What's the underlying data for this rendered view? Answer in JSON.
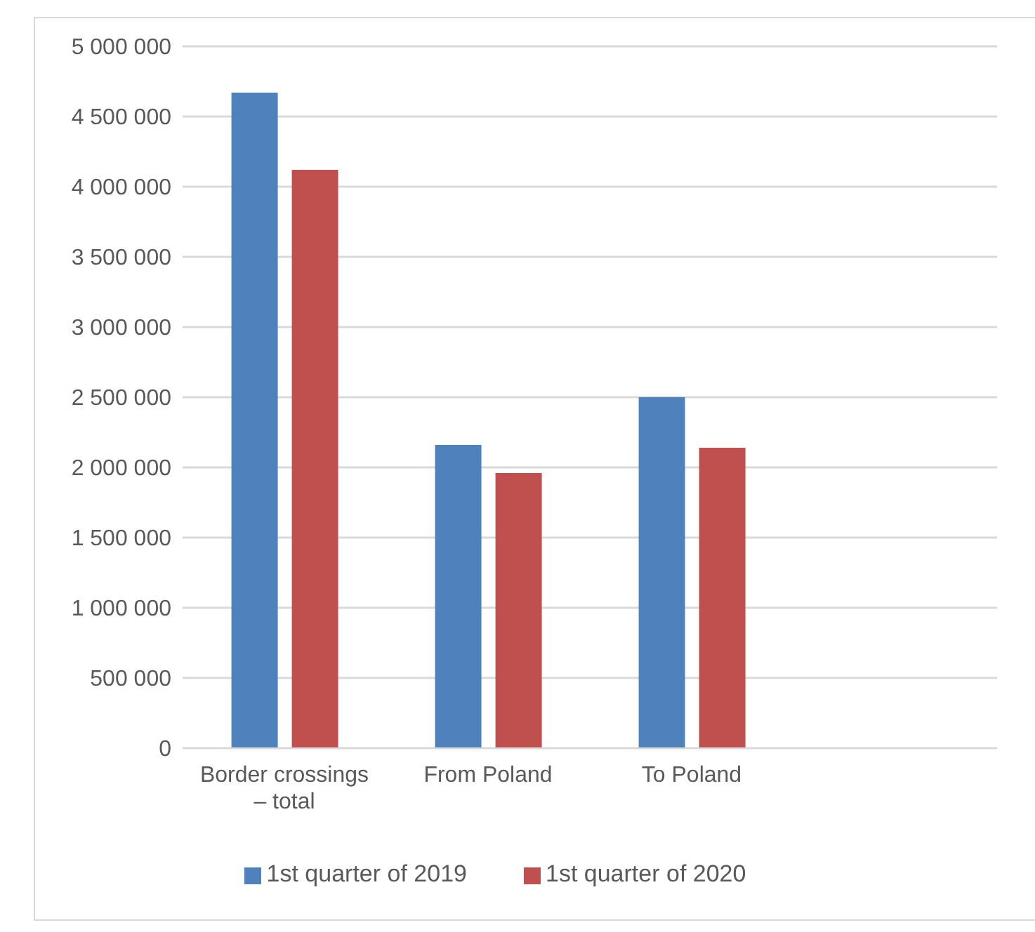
{
  "chart_data": {
    "type": "bar",
    "categories": [
      "Border crossings – total",
      "From Poland",
      "To Poland",
      null
    ],
    "series": [
      {
        "name": "1st quarter of 2019",
        "color": "#4f81bd",
        "values": [
          4670000,
          2160000,
          2500000,
          null
        ]
      },
      {
        "name": "1st quarter of 2020",
        "color": "#c0504d",
        "values": [
          4120000,
          1960000,
          2140000,
          null
        ]
      }
    ],
    "ylim": [
      0,
      5000000
    ],
    "yticks": [
      0,
      500000,
      1000000,
      1500000,
      2000000,
      2500000,
      3000000,
      3500000,
      4000000,
      4500000,
      5000000
    ],
    "grid": "y",
    "legend": "bottom"
  }
}
